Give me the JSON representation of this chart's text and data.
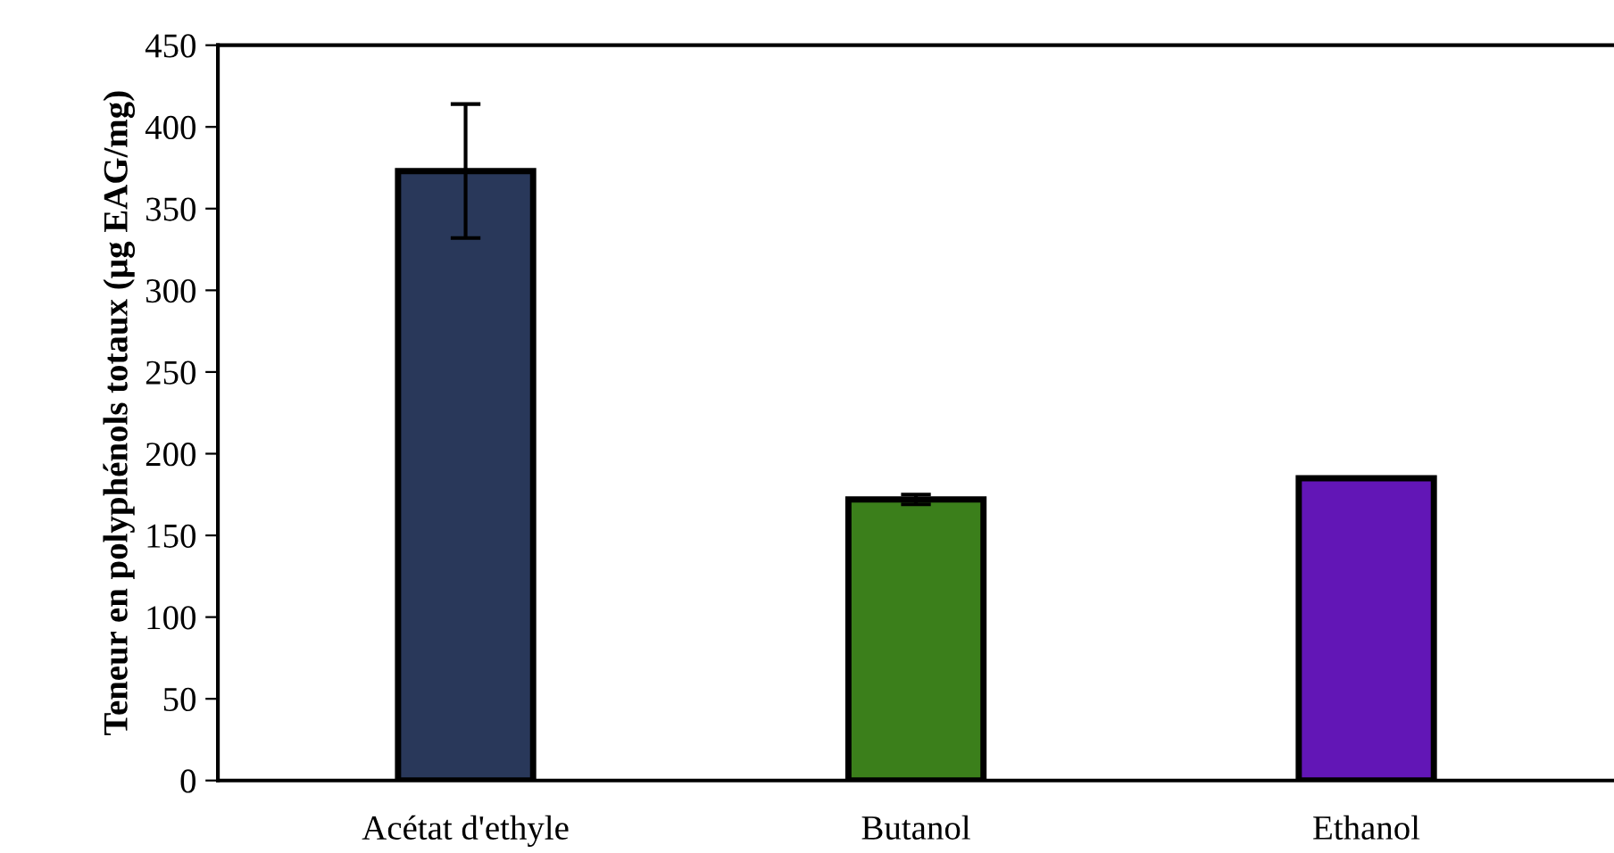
{
  "chart_data": {
    "type": "bar",
    "ylabel": "Teneur en polyphénols totaux (µg EAG/mg)",
    "categories": [
      "Acétat d'ethyle",
      "Butanol",
      "Ethanol"
    ],
    "values": [
      373,
      172,
      185
    ],
    "colors": [
      "#29385a",
      "#3b7f1b",
      "#6216b6"
    ],
    "errors": [
      41,
      3,
      null
    ],
    "ylim": [
      0,
      450
    ],
    "yticks": [
      0,
      50,
      100,
      150,
      200,
      250,
      300,
      350,
      400,
      450
    ],
    "grid": false,
    "legend": false
  }
}
